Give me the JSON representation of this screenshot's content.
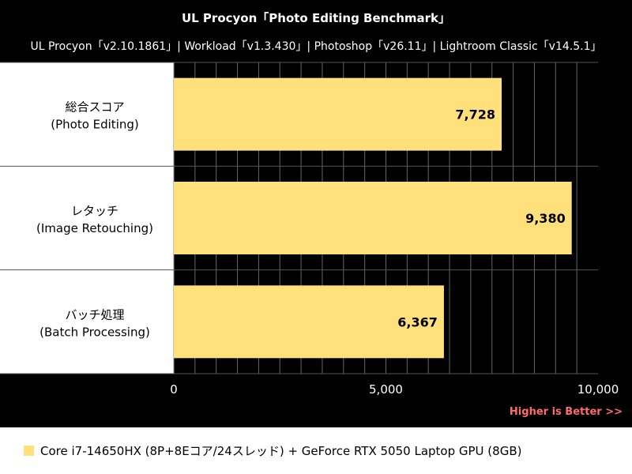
{
  "header": {
    "title": "UL Procyon「Photo Editing Benchmark」",
    "subtitle": "UL Procyon「v2.10.1861」| Workload「v1.3.430」| Photoshop「v26.11」| Lightroom Classic「v14.5.1」"
  },
  "note": "Higher is Better >>",
  "legend": {
    "label": "Core i7-14650HX (8P+8Eコア/24スレッド) + GeForce RTX 5050 Laptop GPU (8GB)",
    "color": "#ffe07a"
  },
  "chart_data": {
    "type": "bar",
    "orientation": "horizontal",
    "title": "UL Procyon「Photo Editing Benchmark」",
    "categories": [
      [
        "総合スコア",
        "(Photo Editing)"
      ],
      [
        "レタッチ",
        "(Image Retouching)"
      ],
      [
        "バッチ処理",
        "(Batch Processing)"
      ]
    ],
    "values": [
      7728,
      9380,
      6367
    ],
    "value_labels": [
      "7,728",
      "9,380",
      "6,367"
    ],
    "xlim": [
      0,
      10000
    ],
    "xticks": [
      0,
      5000,
      10000
    ],
    "xtick_labels": [
      "0",
      "5,000",
      "10,000"
    ],
    "grid": true,
    "bar_color": "#ffe07a",
    "grid_color": "#666666"
  }
}
